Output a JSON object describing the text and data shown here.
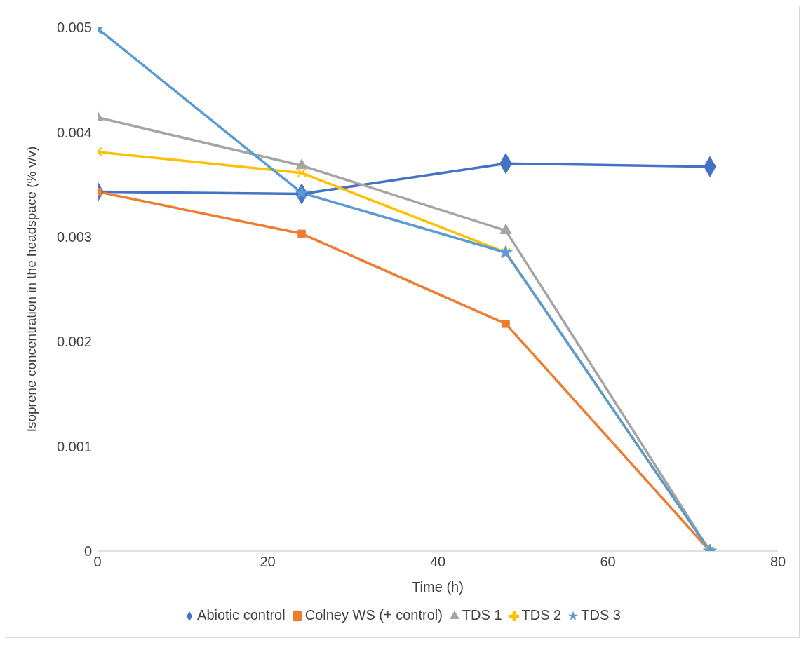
{
  "chart_data": {
    "type": "line",
    "xlabel": "Time (h)",
    "ylabel": "Isoprene concentration in the headspace (% v/v)",
    "x": [
      0,
      24,
      48,
      72
    ],
    "xlim": [
      0,
      80
    ],
    "xticks": [
      0,
      20,
      40,
      60,
      80
    ],
    "ylim": [
      0,
      0.005
    ],
    "yticks": [
      0,
      0.001,
      0.002,
      0.003,
      0.004,
      0.005
    ],
    "grid": false,
    "legend": "bottom",
    "series": [
      {
        "name": "Abiotic control",
        "color": "#4472c4",
        "marker": "diamond",
        "values": [
          0.00343,
          0.00341,
          0.0037,
          0.00367
        ]
      },
      {
        "name": "Colney WS (+ control)",
        "color": "#ed7d31",
        "marker": "square",
        "values": [
          0.00343,
          0.00303,
          0.00217,
          0
        ]
      },
      {
        "name": "TDS 1",
        "color": "#a5a5a5",
        "marker": "triangle",
        "values": [
          0.00414,
          0.00368,
          0.00306,
          0
        ]
      },
      {
        "name": "TDS 2",
        "color": "#ffc000",
        "marker": "cross",
        "values": [
          0.00381,
          0.00361,
          0.00285,
          0
        ]
      },
      {
        "name": "TDS 3",
        "color": "#5b9bd5",
        "marker": "star",
        "values": [
          0.00499,
          0.00342,
          0.00285,
          0
        ]
      }
    ]
  }
}
